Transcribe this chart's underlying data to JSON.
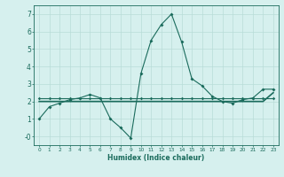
{
  "xlabel": "Humidex (Indice chaleur)",
  "x": [
    0,
    1,
    2,
    3,
    4,
    5,
    6,
    7,
    8,
    9,
    10,
    11,
    12,
    13,
    14,
    15,
    16,
    17,
    18,
    19,
    20,
    21,
    22,
    23
  ],
  "line1": [
    1.0,
    1.7,
    1.9,
    2.1,
    2.2,
    2.4,
    2.2,
    1.0,
    0.5,
    -0.1,
    3.6,
    5.5,
    6.4,
    7.0,
    5.4,
    3.3,
    2.9,
    2.3,
    2.0,
    1.9,
    2.1,
    2.2,
    2.7,
    2.7
  ],
  "line2": [
    2.2,
    2.2,
    2.2,
    2.2,
    2.2,
    2.2,
    2.2,
    2.2,
    2.2,
    2.2,
    2.2,
    2.2,
    2.2,
    2.2,
    2.2,
    2.2,
    2.2,
    2.2,
    2.2,
    2.2,
    2.2,
    2.2,
    2.2,
    2.2
  ],
  "line3": [
    2.0,
    2.0,
    2.0,
    2.0,
    2.0,
    2.0,
    2.0,
    2.0,
    2.0,
    2.0,
    2.0,
    2.0,
    2.0,
    2.0,
    2.0,
    2.0,
    2.0,
    2.0,
    2.0,
    2.0,
    2.0,
    2.0,
    2.0,
    2.5
  ],
  "line_color": "#1a6b5c",
  "bg_color": "#d6f0ee",
  "grid_color": "#b8dcd8",
  "ylim": [
    -0.5,
    7.5
  ],
  "xlim": [
    -0.5,
    23.5
  ],
  "yticks": [
    0,
    1,
    2,
    3,
    4,
    5,
    6,
    7
  ],
  "xticks": [
    0,
    1,
    2,
    3,
    4,
    5,
    6,
    7,
    8,
    9,
    10,
    11,
    12,
    13,
    14,
    15,
    16,
    17,
    18,
    19,
    20,
    21,
    22,
    23
  ]
}
